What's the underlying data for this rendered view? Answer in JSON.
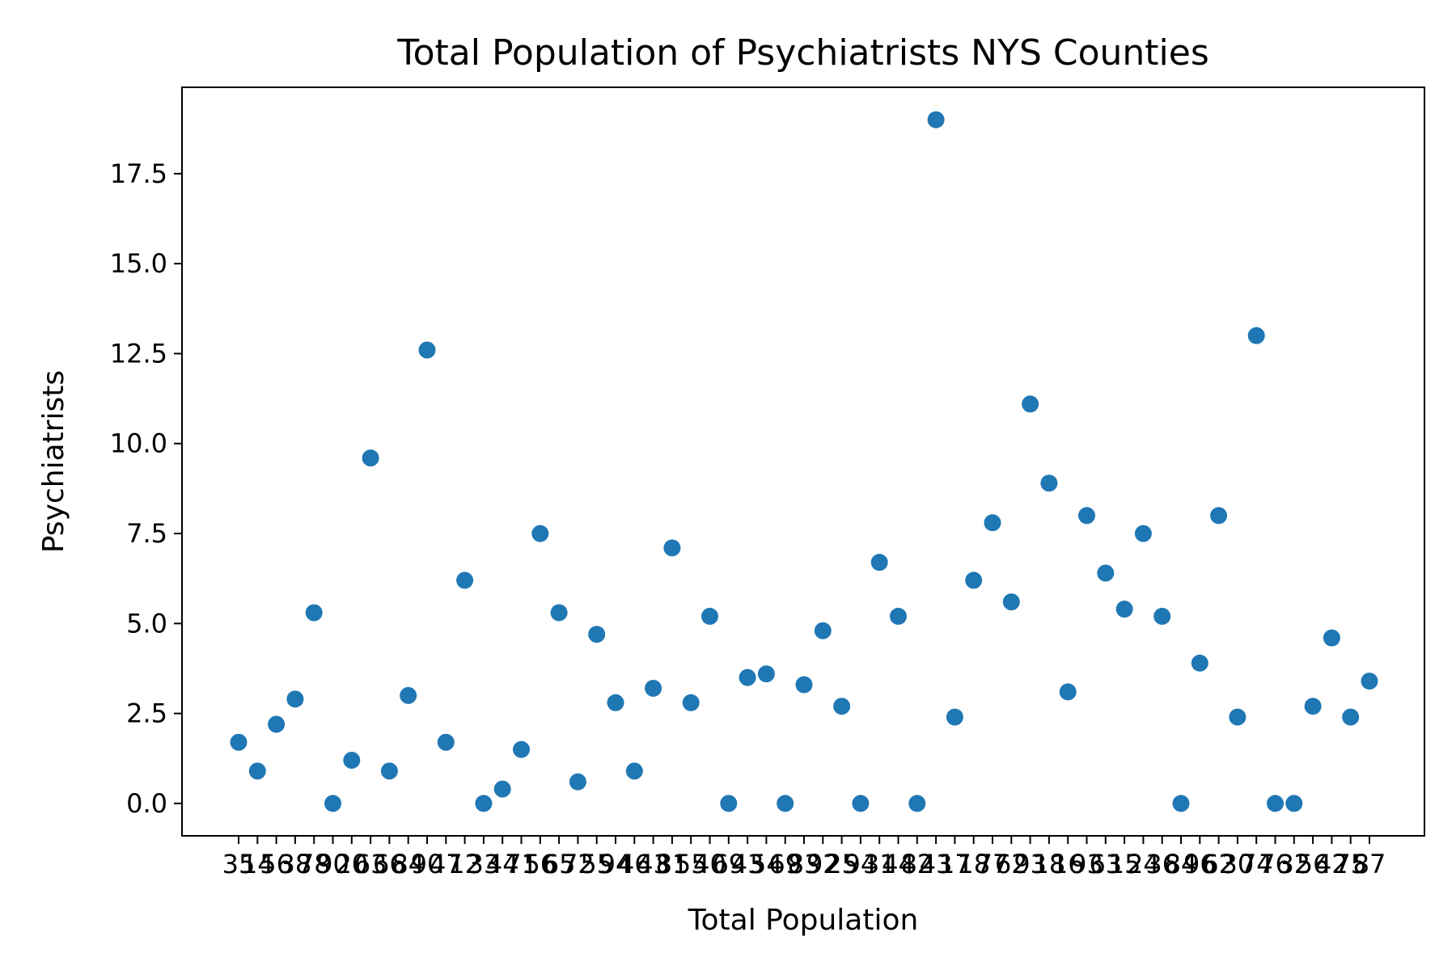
{
  "chart_data": {
    "type": "scatter",
    "title": "Total Population of Psychiatrists NYS Counties",
    "xlabel": "Total Population",
    "ylabel": "Psychiatrists",
    "ylim": [
      -0.9,
      19.9
    ],
    "yticks": [
      0.0,
      2.5,
      5.0,
      7.5,
      10.0,
      12.5,
      15.0,
      17.5
    ],
    "ytick_labels": [
      "0.0",
      "2.5",
      "5.0",
      "7.5",
      "10.0",
      "12.5",
      "15.0",
      "17.5"
    ],
    "x_is_categorical": true,
    "grid": false,
    "legend": false,
    "marker_color": "#1f77b4",
    "values": [
      1.7,
      0.9,
      2.2,
      2.9,
      5.3,
      0.0,
      1.2,
      9.6,
      0.9,
      3.0,
      12.6,
      1.7,
      6.2,
      0.0,
      0.4,
      1.5,
      7.5,
      5.3,
      0.6,
      4.7,
      2.8,
      0.9,
      3.2,
      7.1,
      2.8,
      5.2,
      0.0,
      3.5,
      3.6,
      0.0,
      3.3,
      4.8,
      2.7,
      0.0,
      6.7,
      5.2,
      0.0,
      19.0,
      2.4,
      6.2,
      7.8,
      5.6,
      11.1,
      8.9,
      3.1,
      8.0,
      6.4,
      5.4,
      7.5,
      5.2,
      0.0,
      3.9,
      8.0,
      2.4,
      13.0,
      0.0,
      0.0,
      2.7,
      4.6,
      2.4,
      3.4
    ],
    "x_tick_labels": [
      "35",
      "14",
      "56",
      "38",
      "78",
      "90",
      "20",
      "63",
      "66",
      "84",
      "90",
      "47",
      "12",
      "33",
      "44",
      "71",
      "56",
      "65",
      "72",
      "55",
      "94",
      "46",
      "43",
      "81",
      "55",
      "40",
      "69",
      "43",
      "54",
      "69",
      "83",
      "92",
      "25",
      "94",
      "31",
      "44",
      "82",
      "43",
      "17",
      "18",
      "77",
      "62",
      "93",
      "18",
      "16",
      "93",
      "63",
      "15",
      "24",
      "36",
      "84",
      "96",
      "62",
      "30",
      "74",
      "76",
      "32",
      "56",
      "42",
      "75",
      "87"
    ]
  }
}
